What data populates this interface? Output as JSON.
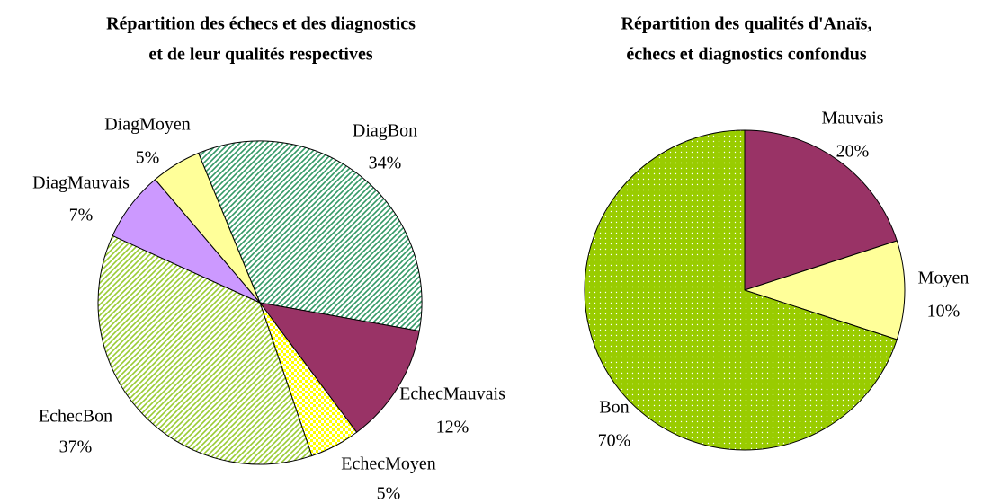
{
  "chart_data": [
    {
      "type": "pie",
      "title": [
        "Répartition des échecs et des diagnostics",
        "et de leur qualités respectives"
      ],
      "categories": [
        "DiagBon",
        "EchecMauvais",
        "EchecMoyen",
        "EchecBon",
        "DiagMauvais",
        "DiagMoyen"
      ],
      "values": [
        34,
        12,
        5,
        37,
        7,
        5
      ],
      "value_labels": [
        "34%",
        "12%",
        "5%",
        "37%",
        "7%",
        "5%"
      ],
      "colors": [
        "#339966",
        "#993366",
        "#ffff00",
        "#99cc33",
        "#cc99ff",
        "#ffff99"
      ],
      "fill_styles": [
        "hatch",
        "solid",
        "checker",
        "hatch",
        "solid",
        "solid"
      ]
    },
    {
      "type": "pie",
      "title": [
        "Répartition des qualités d'Anaïs,",
        "échecs et diagnostics confondus"
      ],
      "categories": [
        "Mauvais",
        "Moyen",
        "Bon"
      ],
      "values": [
        20,
        10,
        70
      ],
      "value_labels": [
        "20%",
        "10%",
        "70%"
      ],
      "colors": [
        "#993366",
        "#ffff99",
        "#99cc00"
      ],
      "fill_styles": [
        "solid",
        "solid",
        "dots"
      ]
    }
  ]
}
